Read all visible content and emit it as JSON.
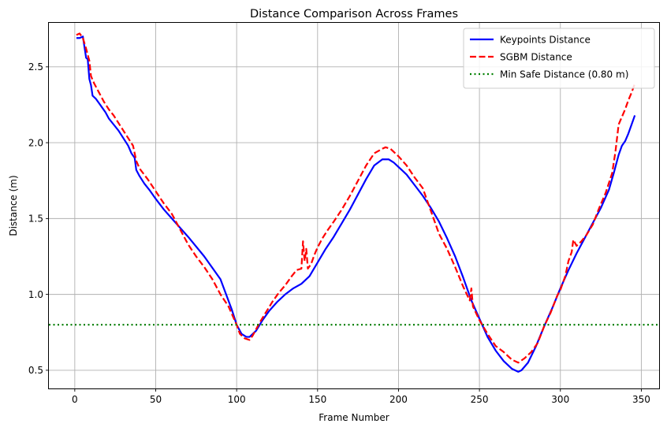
{
  "chart_data": {
    "type": "line",
    "title": "Distance Comparison Across Frames",
    "xlabel": "Frame Number",
    "ylabel": "Distance (m)",
    "xlim": [
      -16,
      361
    ],
    "ylim": [
      0.38,
      2.79
    ],
    "xticks": [
      0,
      50,
      100,
      150,
      200,
      250,
      300,
      350
    ],
    "yticks": [
      0.5,
      1.0,
      1.5,
      2.0,
      2.5
    ],
    "ytick_labels": [
      "0.5",
      "1.0",
      "1.5",
      "2.0",
      "2.5"
    ],
    "grid": true,
    "legend_position": "top-right",
    "series": [
      {
        "name": "Keypoints Distance",
        "color": "#0000ff",
        "style": "solid",
        "points": [
          [
            1,
            2.69
          ],
          [
            3,
            2.69
          ],
          [
            5,
            2.7
          ],
          [
            6,
            2.63
          ],
          [
            7,
            2.56
          ],
          [
            8,
            2.55
          ],
          [
            9,
            2.42
          ],
          [
            10,
            2.38
          ],
          [
            11,
            2.31
          ],
          [
            13,
            2.29
          ],
          [
            15,
            2.26
          ],
          [
            17,
            2.23
          ],
          [
            19,
            2.2
          ],
          [
            21,
            2.16
          ],
          [
            24,
            2.12
          ],
          [
            27,
            2.08
          ],
          [
            30,
            2.03
          ],
          [
            33,
            1.98
          ],
          [
            35,
            1.93
          ],
          [
            37,
            1.9
          ],
          [
            38,
            1.82
          ],
          [
            40,
            1.78
          ],
          [
            43,
            1.73
          ],
          [
            46,
            1.69
          ],
          [
            50,
            1.63
          ],
          [
            55,
            1.56
          ],
          [
            60,
            1.5
          ],
          [
            70,
            1.38
          ],
          [
            80,
            1.25
          ],
          [
            90,
            1.1
          ],
          [
            97,
            0.9
          ],
          [
            100,
            0.8
          ],
          [
            103,
            0.74
          ],
          [
            106,
            0.72
          ],
          [
            108,
            0.72
          ],
          [
            112,
            0.76
          ],
          [
            116,
            0.83
          ],
          [
            120,
            0.89
          ],
          [
            125,
            0.95
          ],
          [
            130,
            1.0
          ],
          [
            135,
            1.04
          ],
          [
            140,
            1.07
          ],
          [
            145,
            1.12
          ],
          [
            150,
            1.21
          ],
          [
            155,
            1.3
          ],
          [
            160,
            1.38
          ],
          [
            165,
            1.47
          ],
          [
            170,
            1.56
          ],
          [
            175,
            1.66
          ],
          [
            180,
            1.76
          ],
          [
            185,
            1.85
          ],
          [
            190,
            1.89
          ],
          [
            194,
            1.89
          ],
          [
            197,
            1.87
          ],
          [
            200,
            1.84
          ],
          [
            205,
            1.79
          ],
          [
            210,
            1.72
          ],
          [
            215,
            1.65
          ],
          [
            220,
            1.57
          ],
          [
            225,
            1.48
          ],
          [
            230,
            1.37
          ],
          [
            235,
            1.25
          ],
          [
            240,
            1.11
          ],
          [
            245,
            0.96
          ],
          [
            250,
            0.84
          ],
          [
            255,
            0.72
          ],
          [
            260,
            0.63
          ],
          [
            265,
            0.56
          ],
          [
            270,
            0.51
          ],
          [
            274,
            0.49
          ],
          [
            276,
            0.5
          ],
          [
            280,
            0.55
          ],
          [
            285,
            0.66
          ],
          [
            290,
            0.79
          ],
          [
            295,
            0.91
          ],
          [
            300,
            1.04
          ],
          [
            305,
            1.16
          ],
          [
            310,
            1.27
          ],
          [
            315,
            1.37
          ],
          [
            320,
            1.47
          ],
          [
            325,
            1.57
          ],
          [
            330,
            1.69
          ],
          [
            333,
            1.8
          ],
          [
            336,
            1.92
          ],
          [
            338,
            1.98
          ],
          [
            340,
            2.01
          ],
          [
            342,
            2.06
          ],
          [
            344,
            2.12
          ],
          [
            346,
            2.18
          ]
        ]
      },
      {
        "name": "SGBM Distance",
        "color": "#ff0000",
        "style": "dashed",
        "points": [
          [
            1,
            2.71
          ],
          [
            3,
            2.72
          ],
          [
            5,
            2.69
          ],
          [
            7,
            2.62
          ],
          [
            9,
            2.54
          ],
          [
            10,
            2.44
          ],
          [
            12,
            2.39
          ],
          [
            15,
            2.33
          ],
          [
            18,
            2.27
          ],
          [
            21,
            2.22
          ],
          [
            24,
            2.18
          ],
          [
            27,
            2.13
          ],
          [
            30,
            2.08
          ],
          [
            33,
            2.03
          ],
          [
            36,
            1.98
          ],
          [
            38,
            1.88
          ],
          [
            40,
            1.83
          ],
          [
            45,
            1.76
          ],
          [
            50,
            1.68
          ],
          [
            55,
            1.6
          ],
          [
            60,
            1.53
          ],
          [
            65,
            1.43
          ],
          [
            70,
            1.33
          ],
          [
            75,
            1.25
          ],
          [
            80,
            1.18
          ],
          [
            85,
            1.1
          ],
          [
            90,
            1.0
          ],
          [
            95,
            0.92
          ],
          [
            100,
            0.8
          ],
          [
            102,
            0.74
          ],
          [
            105,
            0.71
          ],
          [
            108,
            0.7
          ],
          [
            110,
            0.73
          ],
          [
            114,
            0.81
          ],
          [
            118,
            0.88
          ],
          [
            122,
            0.95
          ],
          [
            126,
            1.01
          ],
          [
            130,
            1.06
          ],
          [
            134,
            1.12
          ],
          [
            137,
            1.16
          ],
          [
            140,
            1.17
          ],
          [
            141,
            1.35
          ],
          [
            142,
            1.22
          ],
          [
            143,
            1.3
          ],
          [
            144,
            1.17
          ],
          [
            146,
            1.2
          ],
          [
            148,
            1.26
          ],
          [
            150,
            1.31
          ],
          [
            153,
            1.37
          ],
          [
            156,
            1.42
          ],
          [
            160,
            1.48
          ],
          [
            165,
            1.56
          ],
          [
            170,
            1.65
          ],
          [
            175,
            1.75
          ],
          [
            180,
            1.85
          ],
          [
            185,
            1.93
          ],
          [
            190,
            1.96
          ],
          [
            192,
            1.97
          ],
          [
            195,
            1.96
          ],
          [
            200,
            1.91
          ],
          [
            205,
            1.85
          ],
          [
            210,
            1.77
          ],
          [
            215,
            1.7
          ],
          [
            220,
            1.55
          ],
          [
            225,
            1.4
          ],
          [
            230,
            1.3
          ],
          [
            235,
            1.18
          ],
          [
            240,
            1.05
          ],
          [
            244,
            0.96
          ],
          [
            245,
            1.04
          ],
          [
            246,
            0.92
          ],
          [
            250,
            0.83
          ],
          [
            255,
            0.74
          ],
          [
            260,
            0.66
          ],
          [
            265,
            0.62
          ],
          [
            270,
            0.57
          ],
          [
            274,
            0.55
          ],
          [
            278,
            0.58
          ],
          [
            282,
            0.62
          ],
          [
            286,
            0.68
          ],
          [
            290,
            0.79
          ],
          [
            294,
            0.88
          ],
          [
            298,
            0.99
          ],
          [
            300,
            1.03
          ],
          [
            303,
            1.12
          ],
          [
            305,
            1.22
          ],
          [
            307,
            1.28
          ],
          [
            308,
            1.36
          ],
          [
            310,
            1.32
          ],
          [
            313,
            1.35
          ],
          [
            316,
            1.39
          ],
          [
            320,
            1.46
          ],
          [
            324,
            1.57
          ],
          [
            328,
            1.67
          ],
          [
            332,
            1.8
          ],
          [
            334,
            1.94
          ],
          [
            336,
            2.12
          ],
          [
            338,
            2.17
          ],
          [
            340,
            2.22
          ],
          [
            342,
            2.28
          ],
          [
            344,
            2.33
          ],
          [
            346,
            2.39
          ]
        ]
      },
      {
        "name": "Min Safe Distance (0.80 m)",
        "color": "#008000",
        "style": "dotted",
        "y": 0.8
      }
    ]
  }
}
